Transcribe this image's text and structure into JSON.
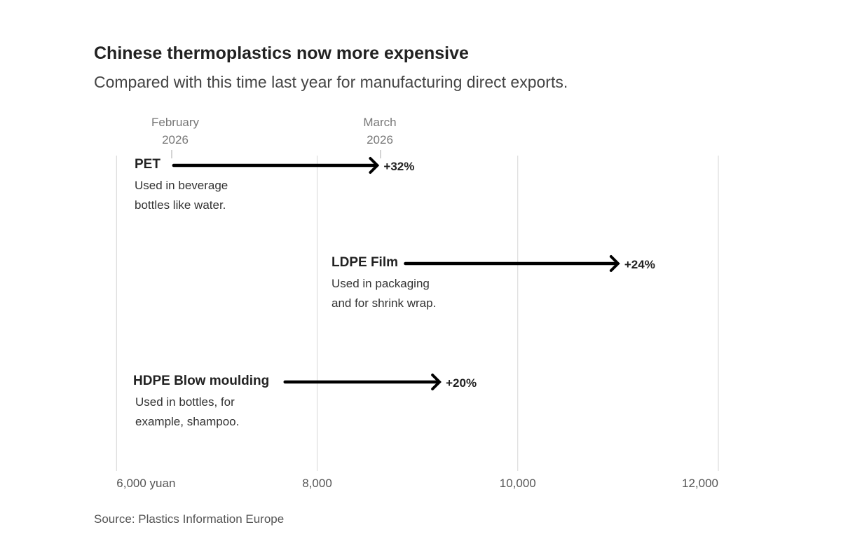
{
  "title": "Chinese thermoplastics now more expensive",
  "subtitle": "Compared with this time last year for manufacturing direct exports.",
  "source": "Source: Plastics Information Europe",
  "chart_data": {
    "type": "arrow-dumbbell",
    "x_unit": "yuan",
    "xlim": [
      5970,
      12000
    ],
    "x_ticks": [
      {
        "value": 6000,
        "label": "6,000 yuan"
      },
      {
        "value": 8000,
        "label": "8,000"
      },
      {
        "value": 10000,
        "label": "10,000"
      },
      {
        "value": 12000,
        "label": "12,000"
      }
    ],
    "period_labels": {
      "start": [
        "February",
        "2026"
      ],
      "end": [
        "March",
        "2026"
      ]
    },
    "series": [
      {
        "name": "PET",
        "description": [
          "Used in beverage",
          "bottles like water."
        ],
        "start": 6570,
        "end": 8600,
        "change_label": "+32%"
      },
      {
        "name": "LDPE Film",
        "description": [
          "Used in packaging",
          "and for shrink wrap."
        ],
        "start": 8880,
        "end": 11000,
        "change_label": "+24%"
      },
      {
        "name": "HDPE Blow moulding",
        "description": [
          "Used in bottles, for",
          "example, shampoo."
        ],
        "start": 7680,
        "end": 9220,
        "change_label": "+20%"
      }
    ],
    "colors": {
      "arrow": "#000000",
      "grid": "#d6d6d6"
    }
  }
}
